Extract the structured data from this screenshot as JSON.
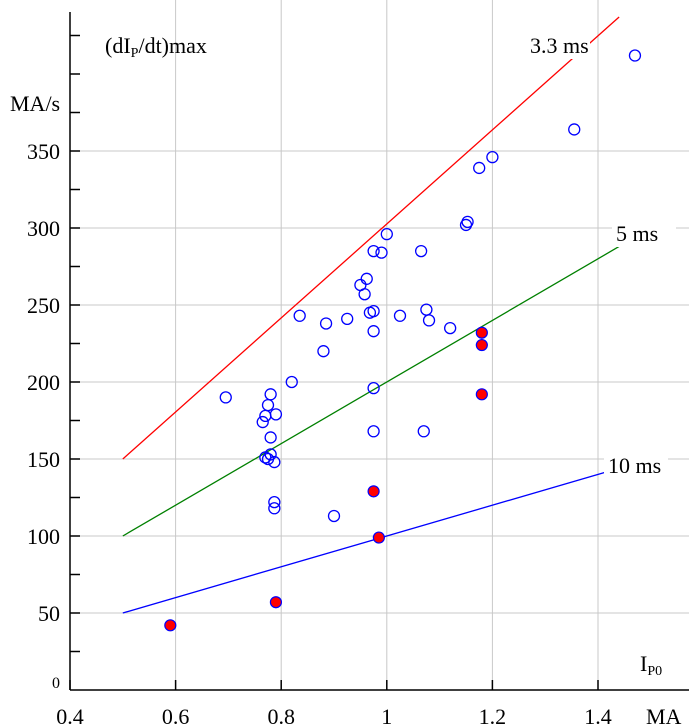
{
  "chart_data": {
    "type": "scatter",
    "title": "(dIP/dt)max",
    "title_parts": {
      "pre": "(dI",
      "sub": "P",
      "post": "/dt)max"
    },
    "ylabel": "MA/s",
    "xlabel_parts": {
      "main": "I",
      "sub": "P0"
    },
    "x_unit": "MA",
    "xlim": [
      0.4,
      1.45
    ],
    "ylim": [
      0,
      440
    ],
    "xticks": [
      0.4,
      0.6,
      0.8,
      1.0,
      1.2,
      1.4
    ],
    "xtick_labels": [
      "0.4",
      "0.6",
      "0.8",
      "1",
      "1.2",
      "1.4"
    ],
    "yticks": [
      0,
      50,
      100,
      150,
      200,
      250,
      300,
      350
    ],
    "ytick_labels": [
      "0",
      "50",
      "100",
      "150",
      "200",
      "250",
      "300",
      "350"
    ],
    "grid": true,
    "lines": [
      {
        "label": "3.3 ms",
        "color": "#ff0000",
        "x": [
          0.5,
          1.44
        ],
        "y": [
          150,
          437
        ]
      },
      {
        "label": "5 ms",
        "color": "#008000",
        "x": [
          0.5,
          1.44
        ],
        "y": [
          100,
          288
        ]
      },
      {
        "label": "10 ms",
        "color": "#0000ff",
        "x": [
          0.5,
          1.44
        ],
        "y": [
          50,
          144
        ]
      }
    ],
    "series": [
      {
        "marker": "open-circle",
        "color": "#0000ff",
        "points": [
          [
            0.695,
            190
          ],
          [
            0.765,
            174
          ],
          [
            0.77,
            178
          ],
          [
            0.775,
            185
          ],
          [
            0.78,
            192
          ],
          [
            0.79,
            179
          ],
          [
            0.82,
            200
          ],
          [
            0.78,
            164
          ],
          [
            0.77,
            151
          ],
          [
            0.775,
            150
          ],
          [
            0.78,
            153
          ],
          [
            0.787,
            148
          ],
          [
            0.787,
            122
          ],
          [
            0.787,
            118
          ],
          [
            0.835,
            243
          ],
          [
            0.885,
            238
          ],
          [
            0.88,
            220
          ],
          [
            0.925,
            241
          ],
          [
            0.9,
            113
          ],
          [
            0.95,
            263
          ],
          [
            0.958,
            257
          ],
          [
            0.962,
            267
          ],
          [
            0.968,
            245
          ],
          [
            0.975,
            246
          ],
          [
            0.975,
            233
          ],
          [
            0.975,
            285
          ],
          [
            0.99,
            284
          ],
          [
            1.0,
            296
          ],
          [
            0.975,
            196
          ],
          [
            0.975,
            168
          ],
          [
            1.025,
            243
          ],
          [
            1.065,
            285
          ],
          [
            1.075,
            247
          ],
          [
            1.08,
            240
          ],
          [
            1.12,
            235
          ],
          [
            1.15,
            302
          ],
          [
            1.153,
            304
          ],
          [
            1.175,
            339
          ],
          [
            1.2,
            346
          ],
          [
            1.355,
            364
          ],
          [
            1.07,
            168
          ],
          [
            1.47,
            412
          ]
        ]
      },
      {
        "marker": "filled-circle",
        "color": "#ff0000",
        "edge": "#0000ff",
        "points": [
          [
            0.59,
            42
          ],
          [
            0.79,
            57
          ],
          [
            0.975,
            129
          ],
          [
            0.985,
            99
          ],
          [
            1.18,
            232
          ],
          [
            1.18,
            224
          ],
          [
            1.18,
            192
          ]
        ]
      }
    ]
  }
}
